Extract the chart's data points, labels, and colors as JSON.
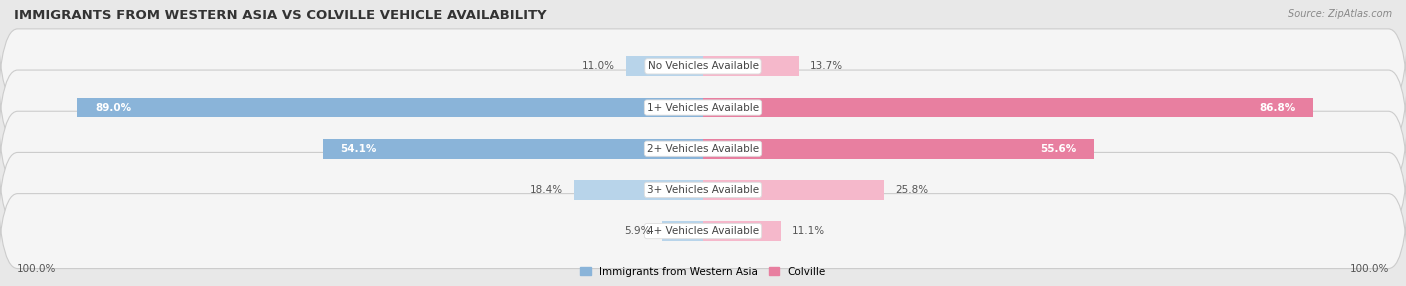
{
  "title": "IMMIGRANTS FROM WESTERN ASIA VS COLVILLE VEHICLE AVAILABILITY",
  "source": "Source: ZipAtlas.com",
  "categories": [
    "No Vehicles Available",
    "1+ Vehicles Available",
    "2+ Vehicles Available",
    "3+ Vehicles Available",
    "4+ Vehicles Available"
  ],
  "western_asia_values": [
    11.0,
    89.0,
    54.1,
    18.4,
    5.9
  ],
  "colville_values": [
    13.7,
    86.8,
    55.6,
    25.8,
    11.1
  ],
  "max_value": 100.0,
  "western_asia_color": "#8ab4d9",
  "colville_color": "#e87fa0",
  "colville_color_light": "#f5b8cb",
  "western_asia_color_light": "#b8d4ea",
  "bg_color": "#e8e8e8",
  "row_bg_color": "#f5f5f5",
  "label_color": "#555555",
  "title_color": "#333333",
  "legend_wa_color": "#8ab4d9",
  "legend_col_color": "#e87fa0"
}
